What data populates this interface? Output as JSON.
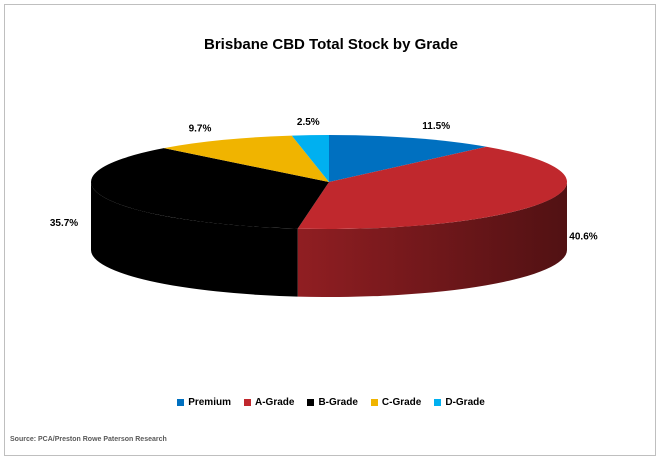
{
  "chart_data": {
    "type": "pie",
    "title": "Brisbane CBD Total Stock by Grade",
    "categories": [
      "Premium",
      "A-Grade",
      "B-Grade",
      "C-Grade",
      "D-Grade"
    ],
    "values": [
      11.5,
      40.6,
      35.7,
      9.7,
      2.5
    ],
    "labels": [
      "11.5%",
      "40.6%",
      "35.7%",
      "9.7%",
      "2.5%"
    ],
    "colors": [
      "#0070c0",
      "#c0282d",
      "#000000",
      "#f0b400",
      "#00b0f0"
    ],
    "style": "3d",
    "legend_position": "bottom"
  },
  "source": "Source: PCA/Preston Rowe Paterson Research"
}
